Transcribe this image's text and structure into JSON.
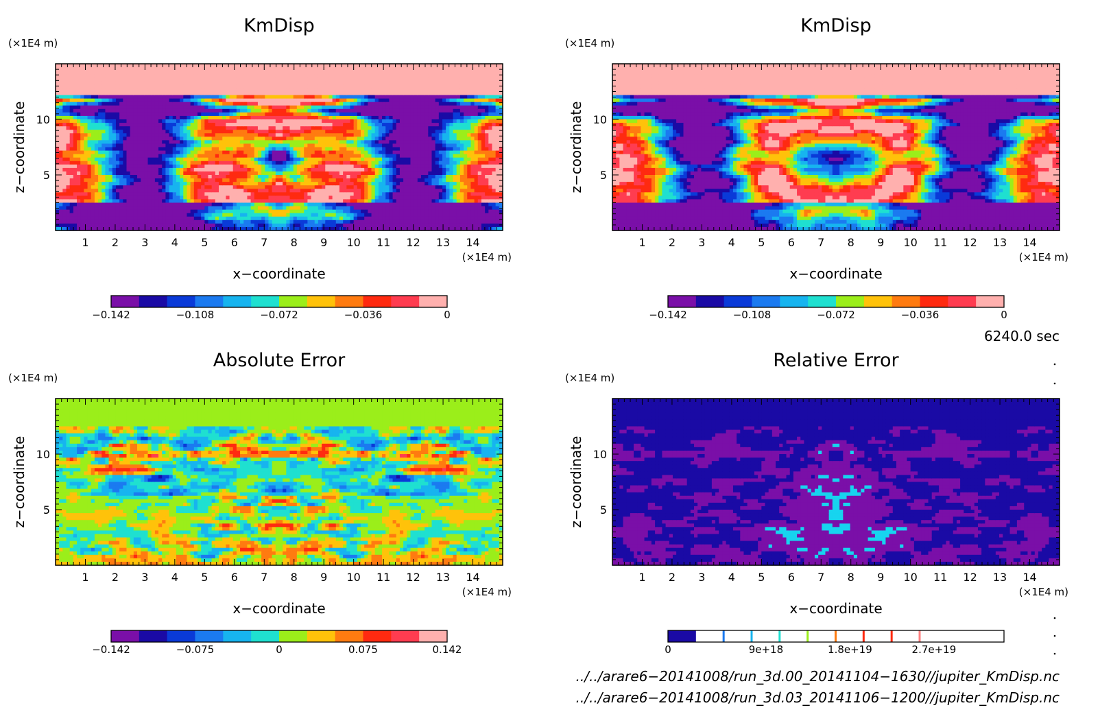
{
  "chart_data": [
    {
      "type": "heatmap",
      "title": "KmDisp",
      "xlabel": "x−coordinate",
      "ylabel": "z−coordinate",
      "x_unit": "(×1E4 m)",
      "y_unit": "(×1E4 m)",
      "x_ticks": [
        "1",
        "2",
        "3",
        "4",
        "5",
        "6",
        "7",
        "8",
        "9",
        "10",
        "11",
        "12",
        "13",
        "14"
      ],
      "y_ticks": [
        "5",
        "10"
      ],
      "xlim": [
        0,
        15
      ],
      "ylim": [
        0,
        15
      ],
      "field": "top",
      "colorbar": {
        "levels": 12,
        "labels": [
          "−0.142",
          "−0.108",
          "−0.072",
          "−0.036",
          "0"
        ],
        "colors": [
          "#7a0fa8",
          "#1a0aa5",
          "#0a3ad8",
          "#1b7af0",
          "#17b4ef",
          "#1fe0d0",
          "#9bee1a",
          "#ffc20a",
          "#ff7b10",
          "#ff2a10",
          "#ff3c50",
          "#ffb0ae"
        ]
      }
    },
    {
      "type": "heatmap",
      "title": "KmDisp",
      "xlabel": "x−coordinate",
      "ylabel": "z−coordinate",
      "x_unit": "(×1E4 m)",
      "y_unit": "(×1E4 m)",
      "x_ticks": [
        "1",
        "2",
        "3",
        "4",
        "5",
        "6",
        "7",
        "8",
        "9",
        "10",
        "11",
        "12",
        "13",
        "14"
      ],
      "y_ticks": [
        "5",
        "10"
      ],
      "xlim": [
        0,
        15
      ],
      "ylim": [
        0,
        15
      ],
      "field": "top",
      "colorbar": {
        "levels": 12,
        "labels": [
          "−0.142",
          "−0.108",
          "−0.072",
          "−0.036",
          "0"
        ],
        "colors": [
          "#7a0fa8",
          "#1a0aa5",
          "#0a3ad8",
          "#1b7af0",
          "#17b4ef",
          "#1fe0d0",
          "#9bee1a",
          "#ffc20a",
          "#ff7b10",
          "#ff2a10",
          "#ff3c50",
          "#ffb0ae"
        ]
      }
    },
    {
      "type": "heatmap",
      "title": "Absolute Error",
      "xlabel": "x−coordinate",
      "ylabel": "z−coordinate",
      "x_unit": "(×1E4 m)",
      "y_unit": "(×1E4 m)",
      "x_ticks": [
        "1",
        "2",
        "3",
        "4",
        "5",
        "6",
        "7",
        "8",
        "9",
        "10",
        "11",
        "12",
        "13",
        "14"
      ],
      "y_ticks": [
        "5",
        "10"
      ],
      "xlim": [
        0,
        15
      ],
      "ylim": [
        0,
        15
      ],
      "field": "abs",
      "colorbar": {
        "levels": 12,
        "labels": [
          "−0.142",
          "−0.075",
          "0",
          "0.075",
          "0.142"
        ],
        "colors": [
          "#7a0fa8",
          "#1a0aa5",
          "#0a3ad8",
          "#1b7af0",
          "#17b4ef",
          "#1fe0d0",
          "#9bee1a",
          "#ffc20a",
          "#ff7b10",
          "#ff2a10",
          "#ff3c50",
          "#ffb0ae"
        ]
      }
    },
    {
      "type": "heatmap",
      "title": "Relative Error",
      "xlabel": "x−coordinate",
      "ylabel": "z−coordinate",
      "x_unit": "(×1E4 m)",
      "y_unit": "(×1E4 m)",
      "x_ticks": [
        "1",
        "2",
        "3",
        "4",
        "5",
        "6",
        "7",
        "8",
        "9",
        "10",
        "11",
        "12",
        "13",
        "14"
      ],
      "y_ticks": [
        "5",
        "10"
      ],
      "xlim": [
        0,
        15
      ],
      "ylim": [
        0,
        15
      ],
      "field": "rel",
      "colorbar": {
        "levels": 12,
        "labels": [
          "0",
          "9e+18",
          "1.8e+19",
          "2.7e+19"
        ],
        "colors": [
          "#1a0aa5",
          "#ffffff",
          "#ffffff",
          "#ffffff",
          "#ffffff",
          "#ffffff",
          "#ffffff",
          "#ffffff",
          "#ffffff",
          "#ffffff",
          "#ffffff",
          "#ffffff"
        ],
        "sep_colors": [
          "#ffffff",
          "#1b7af0",
          "#17b4ef",
          "#1fe0d0",
          "#9bee1a",
          "#ff7b10",
          "#ff2a10",
          "#ff2a10",
          "#ff8080"
        ]
      }
    }
  ],
  "time_label": "6240.0 sec",
  "files": [
    "../../arare6−20141008/run_3d.00_20141104−1630//jupiter_KmDisp.nc",
    "../../arare6−20141008/run_3d.03_20141106−1200//jupiter_KmDisp.nc"
  ]
}
